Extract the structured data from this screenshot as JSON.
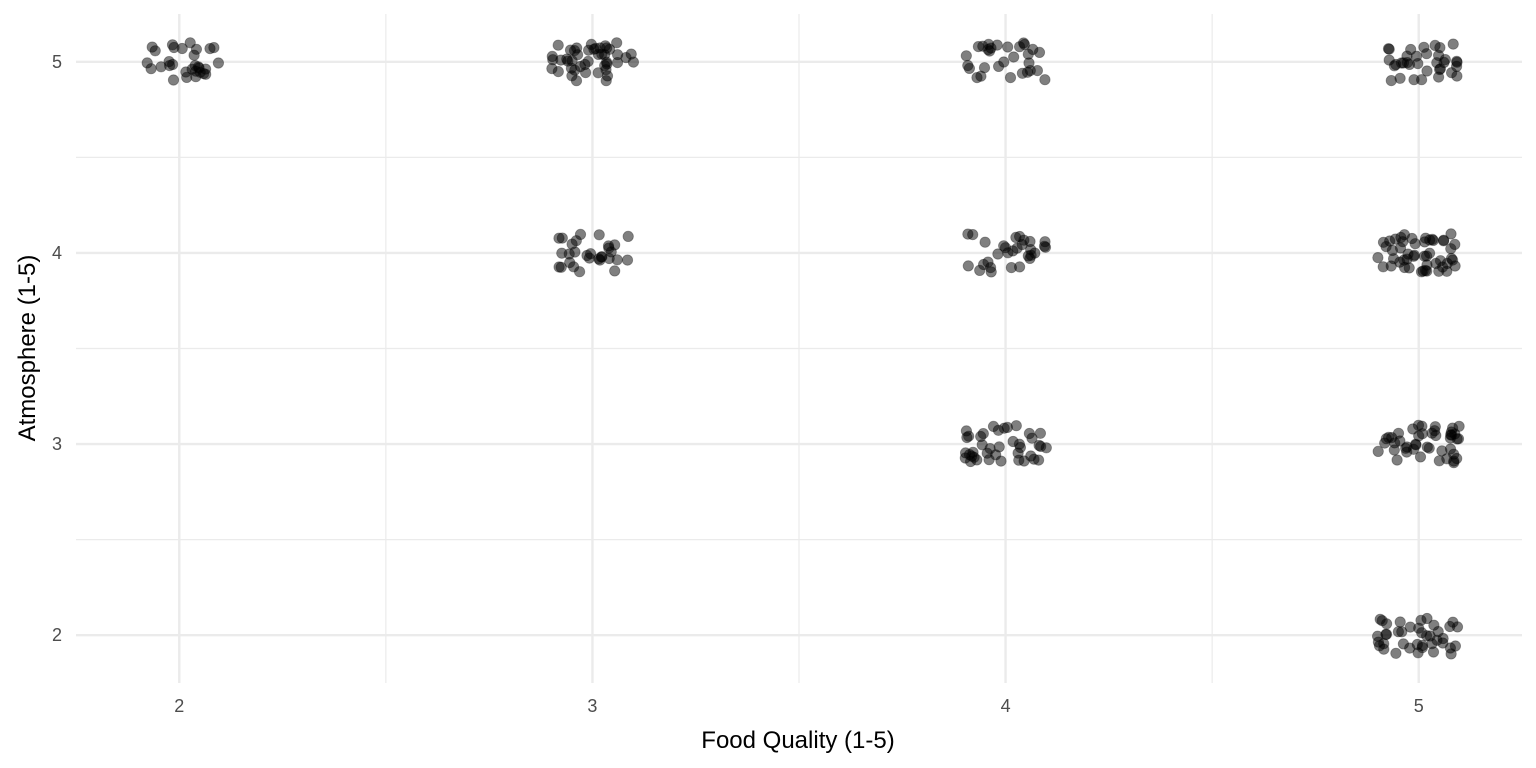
{
  "chart_data": {
    "type": "scatter",
    "title": "",
    "xlabel": "Food Quality (1-5)",
    "ylabel": "Atmosphere (1-5)",
    "xlim": [
      1.75,
      5.25
    ],
    "ylim": [
      1.75,
      5.25
    ],
    "x_ticks": [
      "2",
      "3",
      "4",
      "5"
    ],
    "y_ticks": [
      "2",
      "3",
      "4",
      "5"
    ],
    "grid": true,
    "jitter": true,
    "point_color": "#000000",
    "point_opacity": 0.5,
    "background": "#ffffff",
    "grid_color": "#ebebeb",
    "clusters": [
      {
        "x": 2,
        "y": 5,
        "count": 30
      },
      {
        "x": 3,
        "y": 5,
        "count": 45
      },
      {
        "x": 3,
        "y": 4,
        "count": 30
      },
      {
        "x": 4,
        "y": 5,
        "count": 30
      },
      {
        "x": 4,
        "y": 4,
        "count": 30
      },
      {
        "x": 4,
        "y": 3,
        "count": 40
      },
      {
        "x": 5,
        "y": 5,
        "count": 35
      },
      {
        "x": 5,
        "y": 4,
        "count": 50
      },
      {
        "x": 5,
        "y": 3,
        "count": 45
      },
      {
        "x": 5,
        "y": 2,
        "count": 40
      }
    ]
  }
}
